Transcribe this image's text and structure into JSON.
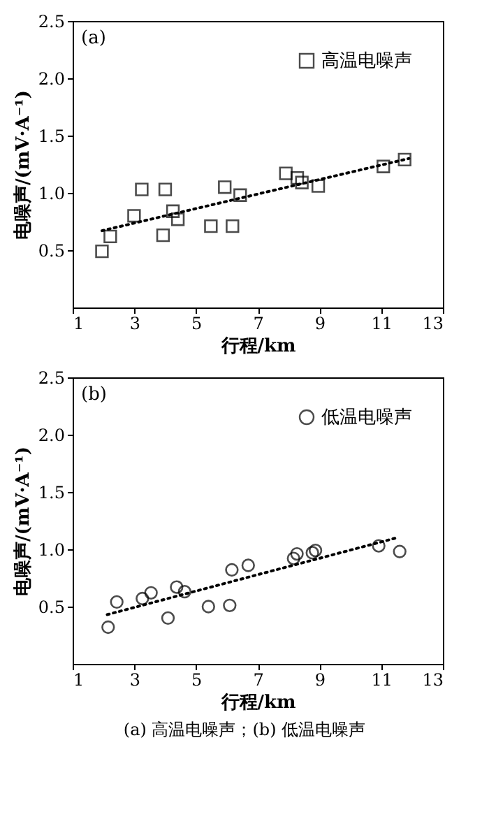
{
  "chart_data": [
    {
      "type": "scatter",
      "xlabel": "行程/km",
      "ylabel": "电噪声/(mV·A⁻¹)",
      "annotations": [
        "(a)"
      ],
      "xlim": [
        1,
        13
      ],
      "xticks": [
        1,
        3,
        5,
        7,
        9,
        11,
        13
      ],
      "ylim": [
        0,
        2.5
      ],
      "yticks": [
        {
          "value": 0.5,
          "label": "0.5"
        },
        {
          "value": 1,
          "label": "1.0"
        },
        {
          "value": 1.5,
          "label": "1.5"
        },
        {
          "value": 2,
          "label": "2.0"
        },
        {
          "value": 2.5,
          "label": "2.5"
        }
      ],
      "grid": false,
      "legend": "top right",
      "series": [
        {
          "name": "高温电噪声",
          "color": "#000000",
          "marker": "square",
          "x": [
            1.95,
            2.22,
            2.99,
            3.24,
            3.93,
            4.0,
            4.25,
            4.41,
            5.48,
            5.93,
            6.18,
            6.43,
            7.91,
            8.28,
            8.43,
            8.96,
            11.07,
            11.76
          ],
          "values": [
            0.49,
            0.62,
            0.8,
            1.03,
            0.63,
            1.03,
            0.84,
            0.77,
            0.71,
            1.05,
            0.71,
            0.98,
            1.17,
            1.13,
            1.09,
            1.06,
            1.23,
            1.29
          ]
        },
        {
          "type": "line",
          "line_style": "dotted",
          "marker": "none",
          "color": "#000000",
          "x": [
            1.95,
            11.9
          ],
          "values": [
            0.67,
            1.3
          ]
        }
      ]
    },
    {
      "type": "scatter",
      "xlabel": "行程/km",
      "ylabel": "电噪声/(mV·A⁻¹)",
      "annotations": [
        "(b)",
        "(a) 高温电噪声；(b) 低温电噪声"
      ],
      "xlim": [
        1,
        13
      ],
      "xticks": [
        1,
        3,
        5,
        7,
        9,
        11,
        13
      ],
      "ylim": [
        0,
        2.5
      ],
      "yticks": [
        {
          "value": 0.5,
          "label": "0.5"
        },
        {
          "value": 1,
          "label": "1.0"
        },
        {
          "value": 1.5,
          "label": "1.5"
        },
        {
          "value": 2,
          "label": "2.0"
        },
        {
          "value": 2.5,
          "label": "2.5"
        }
      ],
      "grid": false,
      "legend": "top right",
      "series": [
        {
          "name": "低温电噪声",
          "color": "#000000",
          "marker": "circle",
          "x": [
            2.15,
            2.43,
            3.26,
            3.54,
            4.09,
            4.37,
            4.63,
            5.4,
            6.09,
            6.16,
            6.69,
            8.16,
            8.27,
            8.77,
            8.87,
            10.92,
            11.6
          ],
          "values": [
            0.32,
            0.54,
            0.57,
            0.62,
            0.4,
            0.67,
            0.63,
            0.5,
            0.51,
            0.82,
            0.86,
            0.92,
            0.96,
            0.97,
            0.99,
            1.03,
            0.98
          ]
        },
        {
          "type": "line",
          "line_style": "dotted",
          "marker": "none",
          "color": "#000000",
          "x": [
            2.12,
            11.5
          ],
          "values": [
            0.43,
            1.1
          ]
        }
      ]
    }
  ]
}
